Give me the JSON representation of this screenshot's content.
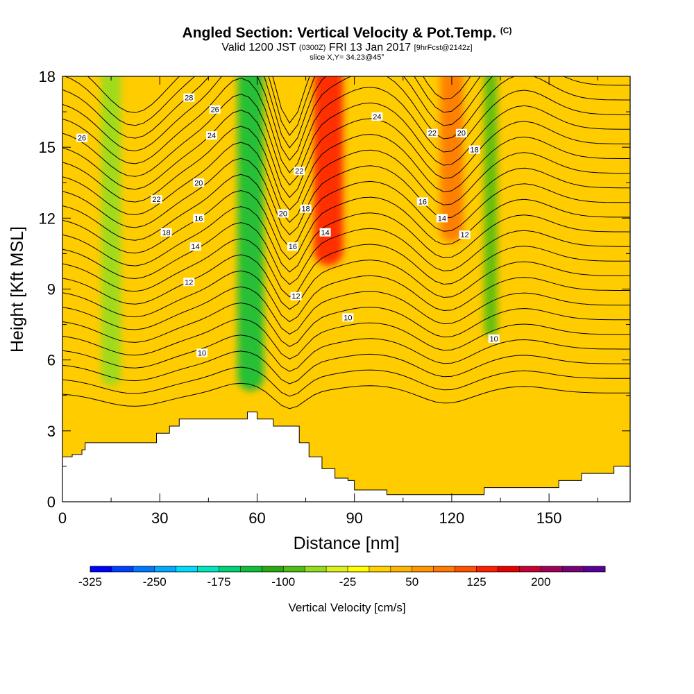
{
  "header": {
    "title": "Angled Section: Vertical Velocity & Pot.Temp.",
    "copyright": "(C)",
    "valid_prefix": "Valid 1200 JST",
    "valid_utc": "(0300Z)",
    "valid_date": "FRI 13 Jan 2017",
    "forecast": "[9hrFcst@2142z]",
    "slice": "slice X,Y= 34.23@45°"
  },
  "chart_data": {
    "type": "heatmap",
    "xlabel": "Distance [nm]",
    "ylabel": "Height [Kft MSL]",
    "xlim": [
      0,
      175
    ],
    "ylim": [
      0,
      18
    ],
    "x_ticks": [
      "0",
      "30",
      "60",
      "90",
      "120",
      "150"
    ],
    "x_tick_values": [
      0,
      30,
      60,
      90,
      120,
      150
    ],
    "y_ticks": [
      "0",
      "3",
      "6",
      "9",
      "12",
      "15",
      "18"
    ],
    "y_tick_values": [
      0,
      3,
      6,
      9,
      12,
      15,
      18
    ],
    "terrain": [
      [
        0,
        1.9
      ],
      [
        3,
        2.0
      ],
      [
        6,
        2.2
      ],
      [
        7,
        2.5
      ],
      [
        23,
        2.5
      ],
      [
        29,
        2.9
      ],
      [
        33,
        3.2
      ],
      [
        36,
        3.5
      ],
      [
        52,
        3.5
      ],
      [
        57,
        3.8
      ],
      [
        60,
        3.5
      ],
      [
        65,
        3.2
      ],
      [
        71,
        3.2
      ],
      [
        73,
        2.5
      ],
      [
        76,
        1.9
      ],
      [
        80,
        1.4
      ],
      [
        84,
        1.0
      ],
      [
        88,
        0.9
      ],
      [
        90,
        0.5
      ],
      [
        100,
        0.3
      ],
      [
        115,
        0.3
      ],
      [
        120,
        0.3
      ],
      [
        130,
        0.6
      ],
      [
        143,
        0.6
      ],
      [
        153,
        0.9
      ],
      [
        160,
        1.2
      ],
      [
        170,
        1.5
      ],
      [
        175,
        1.6
      ]
    ],
    "velocity_bands": [
      {
        "x": 15,
        "width": 6,
        "y_bottom": 4.9,
        "y_top": 18,
        "value": -60
      },
      {
        "x": 58,
        "width": 8,
        "y_bottom": 4.7,
        "y_top": 18,
        "value": -130
      },
      {
        "x": 82,
        "width": 9,
        "y_bottom": 10.0,
        "y_top": 18,
        "value": 140
      },
      {
        "x": 120,
        "width": 7,
        "y_bottom": 11.0,
        "y_top": 18,
        "value": 90
      },
      {
        "x": 132,
        "width": 4,
        "y_bottom": 7.0,
        "y_top": 18,
        "value": -95
      }
    ],
    "contour_labels": [
      {
        "x": 6,
        "y": 15.4,
        "text": "26"
      },
      {
        "x": 39,
        "y": 17.1,
        "text": "28"
      },
      {
        "x": 47,
        "y": 16.6,
        "text": "26"
      },
      {
        "x": 46,
        "y": 15.5,
        "text": "24"
      },
      {
        "x": 29,
        "y": 12.8,
        "text": "22"
      },
      {
        "x": 42,
        "y": 13.5,
        "text": "20"
      },
      {
        "x": 42,
        "y": 12.0,
        "text": "16"
      },
      {
        "x": 32,
        "y": 11.4,
        "text": "18"
      },
      {
        "x": 41,
        "y": 10.8,
        "text": "14"
      },
      {
        "x": 39,
        "y": 9.3,
        "text": "12"
      },
      {
        "x": 43,
        "y": 6.3,
        "text": "10"
      },
      {
        "x": 73,
        "y": 14.0,
        "text": "22"
      },
      {
        "x": 68,
        "y": 12.2,
        "text": "20"
      },
      {
        "x": 75,
        "y": 12.4,
        "text": "18"
      },
      {
        "x": 71,
        "y": 10.8,
        "text": "16"
      },
      {
        "x": 81,
        "y": 11.4,
        "text": "14"
      },
      {
        "x": 72,
        "y": 8.7,
        "text": "12"
      },
      {
        "x": 88,
        "y": 7.8,
        "text": "10"
      },
      {
        "x": 97,
        "y": 16.3,
        "text": "24"
      },
      {
        "x": 114,
        "y": 15.6,
        "text": "22"
      },
      {
        "x": 123,
        "y": 15.6,
        "text": "20"
      },
      {
        "x": 127,
        "y": 14.9,
        "text": "18"
      },
      {
        "x": 111,
        "y": 12.7,
        "text": "16"
      },
      {
        "x": 117,
        "y": 12.0,
        "text": "14"
      },
      {
        "x": 124,
        "y": 11.3,
        "text": "12"
      },
      {
        "x": 133,
        "y": 6.9,
        "text": "10"
      }
    ],
    "colorbar": {
      "label": "Vertical Velocity [cm/s]",
      "tick_labels": [
        "-325",
        "-250",
        "-175",
        "-100",
        "-25",
        "50",
        "125",
        "200"
      ],
      "tick_values": [
        -325,
        -250,
        -175,
        -100,
        -25,
        50,
        125,
        200
      ],
      "min": -325,
      "step": 25,
      "colors": [
        "#0000ff",
        "#0040ff",
        "#0078ff",
        "#00aaff",
        "#00dcff",
        "#00e6be",
        "#00d278",
        "#10be3c",
        "#28aa10",
        "#50be10",
        "#96dc1e",
        "#dcf01e",
        "#ffff00",
        "#ffd200",
        "#ffb400",
        "#ff9600",
        "#ff7800",
        "#ff5000",
        "#ff1e00",
        "#e60000",
        "#c80032",
        "#a0005a",
        "#780078",
        "#5a0096"
      ]
    }
  }
}
